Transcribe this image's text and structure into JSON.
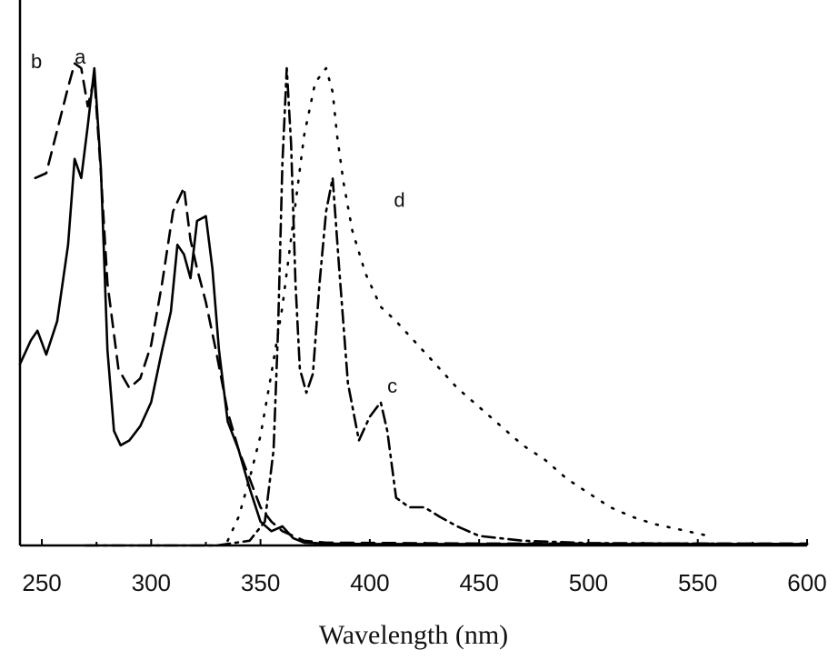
{
  "chart_data": {
    "type": "line",
    "title": "",
    "xlabel": "Wavelength (nm)",
    "ylabel": "",
    "xlim": [
      240,
      600
    ],
    "ylim": [
      0,
      1.0
    ],
    "x_ticks": [
      250,
      300,
      350,
      400,
      450,
      500,
      550,
      600
    ],
    "x_tick_labels": [
      "250",
      "300",
      "350",
      "400",
      "450",
      "500",
      "550",
      "600"
    ],
    "grid": false,
    "legend": "none",
    "series": [
      {
        "name": "a",
        "style": "solid",
        "x": [
          240,
          245,
          248,
          252,
          257,
          262,
          265,
          268,
          271,
          274,
          277,
          280,
          283,
          286,
          290,
          295,
          300,
          305,
          309,
          312,
          315,
          318,
          321,
          325,
          328,
          331,
          335,
          340,
          345,
          350,
          355,
          360,
          365,
          370,
          380,
          400,
          450,
          600
        ],
        "y": [
          0.38,
          0.43,
          0.45,
          0.4,
          0.47,
          0.63,
          0.81,
          0.77,
          0.88,
          1.0,
          0.79,
          0.41,
          0.24,
          0.21,
          0.22,
          0.25,
          0.3,
          0.41,
          0.49,
          0.63,
          0.61,
          0.56,
          0.68,
          0.69,
          0.58,
          0.41,
          0.26,
          0.2,
          0.12,
          0.05,
          0.03,
          0.04,
          0.015,
          0.006,
          0.004,
          0.003,
          0.003,
          0.003
        ]
      },
      {
        "name": "b",
        "style": "dashed",
        "x": [
          247,
          252,
          257,
          262,
          265,
          268,
          271,
          274,
          277,
          280,
          285,
          290,
          295,
          300,
          305,
          310,
          315,
          318,
          321,
          325,
          330,
          335,
          340,
          345,
          350,
          355,
          360,
          365,
          370,
          380,
          450,
          600
        ],
        "y": [
          0.77,
          0.78,
          0.87,
          0.96,
          1.01,
          1.0,
          0.92,
          0.98,
          0.78,
          0.55,
          0.37,
          0.33,
          0.35,
          0.42,
          0.55,
          0.7,
          0.75,
          0.64,
          0.58,
          0.51,
          0.4,
          0.28,
          0.2,
          0.14,
          0.08,
          0.05,
          0.03,
          0.02,
          0.01,
          0.006,
          0.004,
          0.004
        ]
      },
      {
        "name": "c",
        "style": "dash-dot",
        "x": [
          270,
          330,
          345,
          352,
          356,
          358,
          360,
          362,
          364,
          366,
          368,
          371,
          374,
          377,
          380,
          383,
          386,
          390,
          395,
          400,
          405,
          408,
          412,
          418,
          425,
          432,
          440,
          450,
          470,
          500,
          600
        ],
        "y": [
          0.0,
          0.0,
          0.01,
          0.05,
          0.2,
          0.45,
          0.8,
          1.0,
          0.84,
          0.55,
          0.37,
          0.32,
          0.36,
          0.55,
          0.7,
          0.77,
          0.58,
          0.34,
          0.22,
          0.27,
          0.3,
          0.24,
          0.1,
          0.08,
          0.08,
          0.06,
          0.04,
          0.02,
          0.01,
          0.005,
          0.003
        ]
      },
      {
        "name": "d",
        "style": "dotted",
        "x": [
          335,
          340,
          345,
          350,
          355,
          360,
          365,
          370,
          375,
          380,
          383,
          385,
          388,
          392,
          398,
          405,
          412,
          420,
          430,
          440,
          450,
          460,
          470,
          480,
          490,
          500,
          510,
          520,
          530,
          540,
          550,
          555
        ],
        "y": [
          0.01,
          0.06,
          0.14,
          0.23,
          0.36,
          0.5,
          0.68,
          0.86,
          0.97,
          1.0,
          0.95,
          0.86,
          0.76,
          0.66,
          0.57,
          0.5,
          0.47,
          0.43,
          0.38,
          0.33,
          0.29,
          0.25,
          0.21,
          0.18,
          0.14,
          0.11,
          0.08,
          0.06,
          0.045,
          0.035,
          0.025,
          0.02
        ]
      }
    ],
    "annotations": [
      {
        "text": "a",
        "series": "a"
      },
      {
        "text": "b",
        "series": "b"
      },
      {
        "text": "c",
        "series": "c"
      },
      {
        "text": "d",
        "series": "d"
      }
    ]
  }
}
